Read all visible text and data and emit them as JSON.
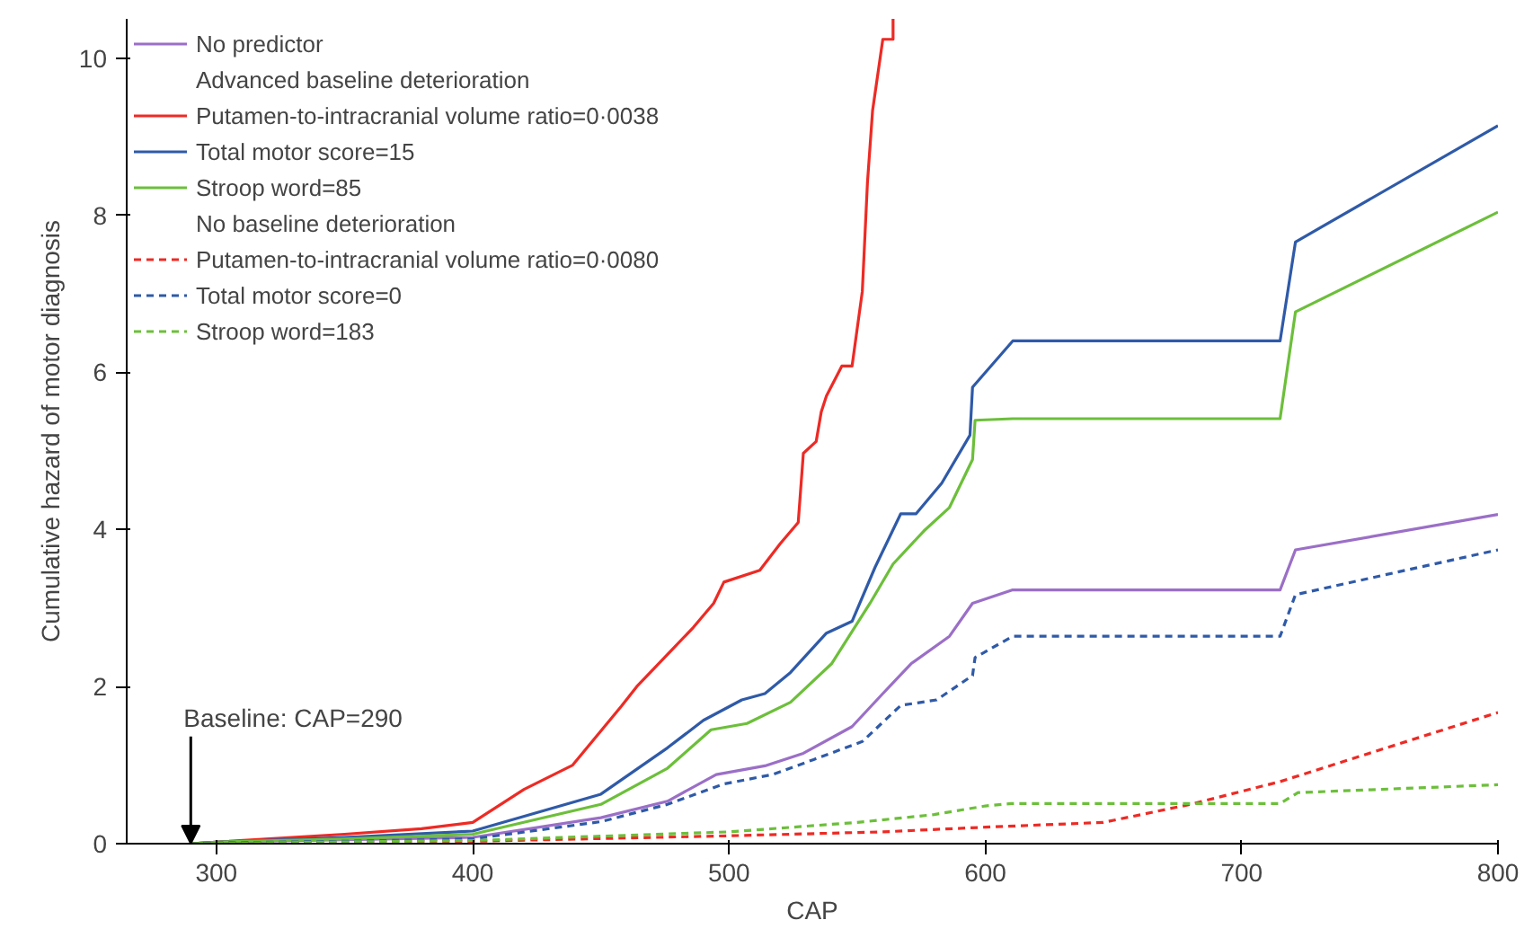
{
  "chart_data": {
    "type": "line",
    "xlabel": "CAP",
    "ylabel": "Cumulative hazard of motor diagnosis",
    "xlim": [
      265,
      800
    ],
    "ylim": [
      0,
      10.5
    ],
    "xticks": [
      300,
      400,
      500,
      600,
      700,
      800
    ],
    "yticks": [
      0,
      2,
      4,
      6,
      8,
      10
    ],
    "grid": false,
    "legend": "top left",
    "annotations": [
      {
        "text": "Baseline: CAP=290",
        "x": 290,
        "y": 0
      },
      "Advanced baseline deterioration",
      "No baseline deterioration"
    ],
    "series": [
      {
        "name": "No predictor",
        "color": "#9b6fc7",
        "line_style": "solid",
        "x": [
          290,
          300,
          350,
          400,
          450,
          476,
          495,
          514,
          529,
          548,
          560,
          571,
          586,
          595,
          610.7,
          715,
          721,
          800
        ],
        "values": [
          0,
          0.02,
          0.05,
          0.08,
          0.33,
          0.54,
          0.88,
          0.99,
          1.15,
          1.49,
          1.91,
          2.29,
          2.64,
          3.06,
          3.23,
          3.23,
          3.74,
          4.19
        ]
      },
      {
        "name": "Putamen-to-intracranial volume ratio=0·0038",
        "color": "#ee2a24",
        "line_style": "solid",
        "x": [
          290,
          300,
          350,
          380,
          400,
          420,
          439,
          458,
          464,
          476,
          486,
          494,
          498,
          512,
          520,
          527,
          529,
          534,
          536,
          538,
          544,
          548,
          552,
          554,
          556,
          560,
          564,
          564
        ],
        "values": [
          0,
          0.02,
          0.12,
          0.19,
          0.27,
          0.69,
          1.0,
          1.75,
          2.0,
          2.41,
          2.75,
          3.06,
          3.33,
          3.48,
          3.82,
          4.09,
          4.97,
          5.12,
          5.5,
          5.7,
          6.08,
          6.08,
          7.03,
          8.41,
          9.33,
          10.24,
          10.24,
          10.5
        ]
      },
      {
        "name": "Total motor score=15",
        "color": "#2f5aa8",
        "line_style": "solid",
        "x": [
          290,
          300,
          350,
          400,
          450,
          476,
          490,
          505,
          514,
          524,
          538,
          548,
          557,
          567,
          573,
          583,
          594,
          595,
          610.7,
          715,
          721,
          800
        ],
        "values": [
          0,
          0.02,
          0.08,
          0.16,
          0.63,
          1.22,
          1.57,
          1.83,
          1.91,
          2.18,
          2.68,
          2.83,
          3.52,
          4.2,
          4.2,
          4.59,
          5.2,
          5.81,
          6.4,
          6.4,
          7.66,
          9.14
        ]
      },
      {
        "name": "Stroop word=85",
        "color": "#6cbf3a",
        "line_style": "solid",
        "x": [
          290,
          300,
          350,
          400,
          450,
          476,
          493,
          507,
          524,
          540,
          555,
          564,
          576,
          586,
          595,
          596,
          610.7,
          715,
          721,
          800
        ],
        "values": [
          0,
          0.02,
          0.06,
          0.12,
          0.5,
          0.96,
          1.45,
          1.53,
          1.8,
          2.29,
          3.06,
          3.56,
          3.98,
          4.28,
          4.89,
          5.39,
          5.41,
          5.41,
          6.77,
          8.04
        ]
      },
      {
        "name": "Putamen-to-intracranial volume ratio=0·0080",
        "color": "#ee2a24",
        "line_style": "dashed",
        "x": [
          290,
          400,
          500,
          560,
          600,
          646,
          680,
          715,
          800
        ],
        "values": [
          0,
          0.03,
          0.1,
          0.15,
          0.21,
          0.27,
          0.5,
          0.79,
          1.67
        ]
      },
      {
        "name": "Total motor score=0",
        "color": "#2f5aa8",
        "line_style": "dashed",
        "x": [
          290,
          300,
          350,
          400,
          450,
          476,
          498,
          517,
          533,
          552,
          567,
          581,
          595,
          596,
          610.7,
          715,
          721,
          800
        ],
        "values": [
          0,
          0.01,
          0.03,
          0.06,
          0.28,
          0.5,
          0.76,
          0.88,
          1.07,
          1.3,
          1.76,
          1.83,
          2.14,
          2.37,
          2.64,
          2.64,
          3.17,
          3.74
        ]
      },
      {
        "name": "Stroop word=183",
        "color": "#6cbf3a",
        "line_style": "dashed",
        "x": [
          290,
          400,
          500,
          550,
          580,
          600,
          610,
          715,
          722,
          800
        ],
        "values": [
          0,
          0.04,
          0.15,
          0.27,
          0.37,
          0.48,
          0.51,
          0.51,
          0.65,
          0.75
        ]
      }
    ]
  }
}
